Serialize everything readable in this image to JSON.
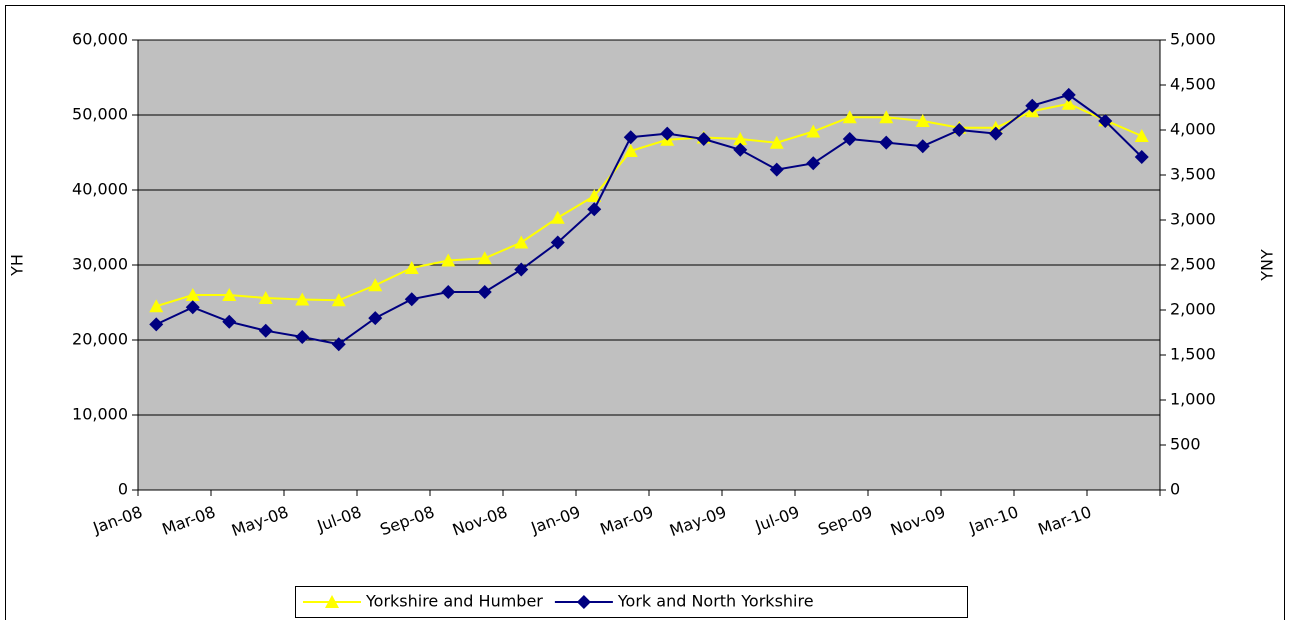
{
  "chart_data": {
    "type": "line",
    "categories": [
      "Jan-08",
      null,
      "Mar-08",
      null,
      "May-08",
      null,
      "Jul-08",
      null,
      "Sep-08",
      null,
      "Nov-08",
      null,
      "Jan-09",
      null,
      "Mar-09",
      null,
      "May-09",
      null,
      "Jul-09",
      null,
      "Sep-09",
      null,
      "Nov-09",
      null,
      "Jan-10",
      null,
      "Mar-10",
      null
    ],
    "series": [
      {
        "name": "Yorkshire and Humber",
        "color": "#ffff00",
        "marker": "triangle",
        "values": [
          24500,
          26000,
          26000,
          25600,
          25400,
          25300,
          27300,
          29600,
          30600,
          30900,
          33000,
          36300,
          39200,
          45200,
          46700,
          47000,
          46800,
          46300,
          47800,
          49700,
          49700,
          49200,
          48300,
          48300,
          50500,
          51500,
          49300,
          47200
        ]
      },
      {
        "name": "York and North Yorkshire",
        "color": "#000080",
        "marker": "diamond",
        "axis": "y2",
        "values": [
          1840,
          2030,
          1870,
          1770,
          1700,
          1620,
          1910,
          2120,
          2200,
          2200,
          2450,
          2750,
          3120,
          3920,
          3960,
          3900,
          3780,
          3560,
          3630,
          3900,
          3860,
          3820,
          4000,
          3960,
          4270,
          4390,
          4100,
          3700
        ]
      }
    ],
    "ylabel": "YH",
    "y2label": "YNY",
    "ylim": [
      0,
      60000
    ],
    "yticks": [
      0,
      {
        "value": 10000,
        "label": "10,000"
      },
      {
        "value": 20000,
        "label": "20,000"
      },
      {
        "value": 30000,
        "label": "30,000"
      },
      {
        "value": 40000,
        "label": "40,000"
      },
      {
        "value": 50000,
        "label": "50,000"
      },
      {
        "value": 60000,
        "label": "60,000"
      }
    ],
    "y2lim": [
      0,
      5000
    ],
    "y2ticks": [
      0,
      500,
      {
        "value": 1000,
        "label": "1,000"
      },
      {
        "value": 1500,
        "label": "1,500"
      },
      {
        "value": 2000,
        "label": "2,000"
      },
      {
        "value": 2500,
        "label": "2,500"
      },
      {
        "value": 3000,
        "label": "3,000"
      },
      {
        "value": 3500,
        "label": "3,500"
      },
      {
        "value": 4000,
        "label": "4,000"
      },
      {
        "value": 4500,
        "label": "4,500"
      },
      {
        "value": 5000,
        "label": "5,000"
      }
    ],
    "grid": true,
    "legend": "bottom",
    "plot_background": "#c0c0c0"
  }
}
